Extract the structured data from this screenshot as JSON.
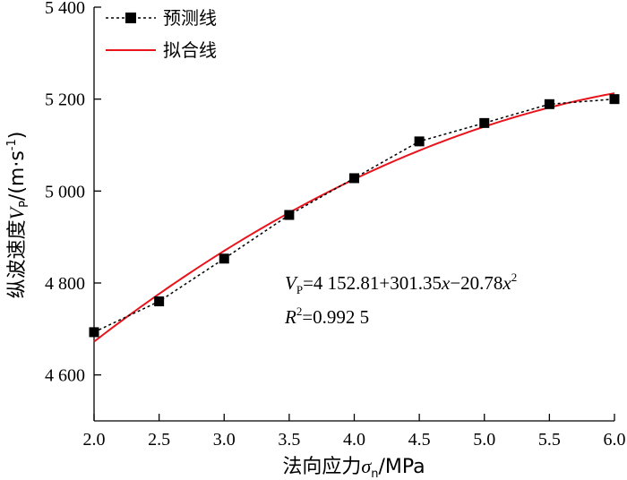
{
  "chart_data": {
    "type": "line",
    "x": [
      2.0,
      2.5,
      3.0,
      3.5,
      4.0,
      4.5,
      5.0,
      5.5,
      6.0
    ],
    "series": [
      {
        "name": "预测线",
        "values": [
          4693,
          4760,
          4853,
          4948,
          5028,
          5108,
          5148,
          5189,
          5200
        ],
        "color": "#000000",
        "style": "dotted",
        "marker": "square"
      },
      {
        "name": "拟合线",
        "fit": {
          "a": 4152.81,
          "b": 301.35,
          "c": -20.78
        },
        "color": "#e8141c",
        "style": "solid"
      }
    ],
    "xlim": [
      2.0,
      6.0
    ],
    "ylim": [
      4500,
      5400
    ],
    "x_ticks": [
      "2.0",
      "2.5",
      "3.0",
      "3.5",
      "4.0",
      "4.5",
      "5.0",
      "5.5",
      "6.0"
    ],
    "y_ticks": [
      4600,
      4800,
      5000,
      5200,
      5400
    ],
    "y_tick_labels": [
      "4 600",
      "4 800",
      "5 000",
      "5 200",
      "5 400"
    ],
    "xlabel": {
      "main": "法向应力",
      "symbol": "σ",
      "sub": "n",
      "unit": "/MPa"
    },
    "ylabel": {
      "main": "纵波速度",
      "symbol": "V",
      "sub": "P",
      "unit_pre": "/(m·s",
      "unit_sup": "-1",
      "unit_post": ")"
    },
    "legend": {
      "placement": "top-left"
    },
    "annotations": {
      "eq": {
        "lhs": "V",
        "lhs_sub": "P",
        "part1": "=4 152.81+301.35",
        "x1": "x",
        "part2": "−20.78",
        "x2": "x",
        "sup": "2"
      },
      "r2": {
        "sym": "R",
        "sup": "2",
        "rest": "=0.992 5"
      }
    },
    "grid": false
  }
}
